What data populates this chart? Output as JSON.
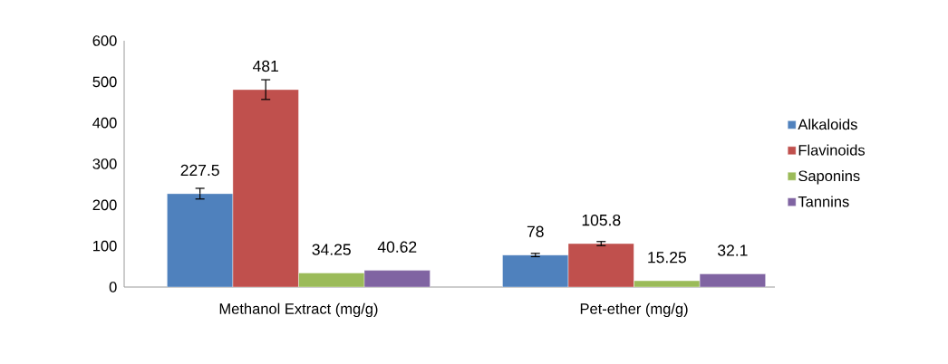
{
  "chart_data": {
    "type": "bar",
    "categories": [
      "Methanol Extract (mg/g)",
      "Pet-ether (mg/g)"
    ],
    "series": [
      {
        "name": "Alkaloids",
        "color": "#4f81bd",
        "values": [
          227.5,
          78
        ],
        "errors": [
          13,
          4
        ]
      },
      {
        "name": "Flavinoids",
        "color": "#c0504d",
        "values": [
          481,
          105.8
        ],
        "errors": [
          24,
          5
        ]
      },
      {
        "name": "Saponins",
        "color": "#9bbb59",
        "values": [
          34.25,
          15.25
        ]
      },
      {
        "name": "Tannins",
        "color": "#8064a2",
        "values": [
          40.62,
          32.1
        ]
      }
    ],
    "ylim": [
      0,
      600
    ],
    "yticks": [
      0,
      100,
      200,
      300,
      400,
      500,
      600
    ],
    "data_labels": true,
    "legend": "right",
    "grid": false
  }
}
